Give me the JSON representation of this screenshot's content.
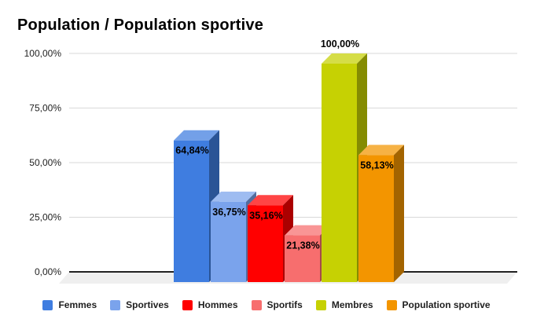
{
  "chart_data": {
    "type": "bar",
    "style": "3d-column",
    "title": "Population / Population sportive",
    "categories": [
      "Femmes",
      "Sportives",
      "Hommes",
      "Sportifs",
      "Membres",
      "Population sportive"
    ],
    "values": [
      64.84,
      36.75,
      35.16,
      21.38,
      100.0,
      58.13
    ],
    "value_labels": [
      "64,84%",
      "36,75%",
      "35,16%",
      "21,38%",
      "100,00%",
      "58,13%"
    ],
    "colors": [
      "#3f7de0",
      "#7aa3ec",
      "#ff0000",
      "#f76e6e",
      "#c6d103",
      "#f39500"
    ],
    "y_axis": {
      "ticks": [
        {
          "value": 0,
          "label": "0,00%"
        },
        {
          "value": 25,
          "label": "25,00%"
        },
        {
          "value": 50,
          "label": "50,00%"
        },
        {
          "value": 75,
          "label": "75,00%"
        },
        {
          "value": 100,
          "label": "100,00%"
        }
      ],
      "ylim": [
        0,
        100
      ]
    },
    "grid": true,
    "legend_position": "bottom",
    "style_colors": {
      "background": "#ffffff",
      "gridline": "#d9d9d9",
      "zero_line": "#212121",
      "floor": "#efefef",
      "axis_text": "#222222",
      "value_label_text": "#000000"
    }
  }
}
